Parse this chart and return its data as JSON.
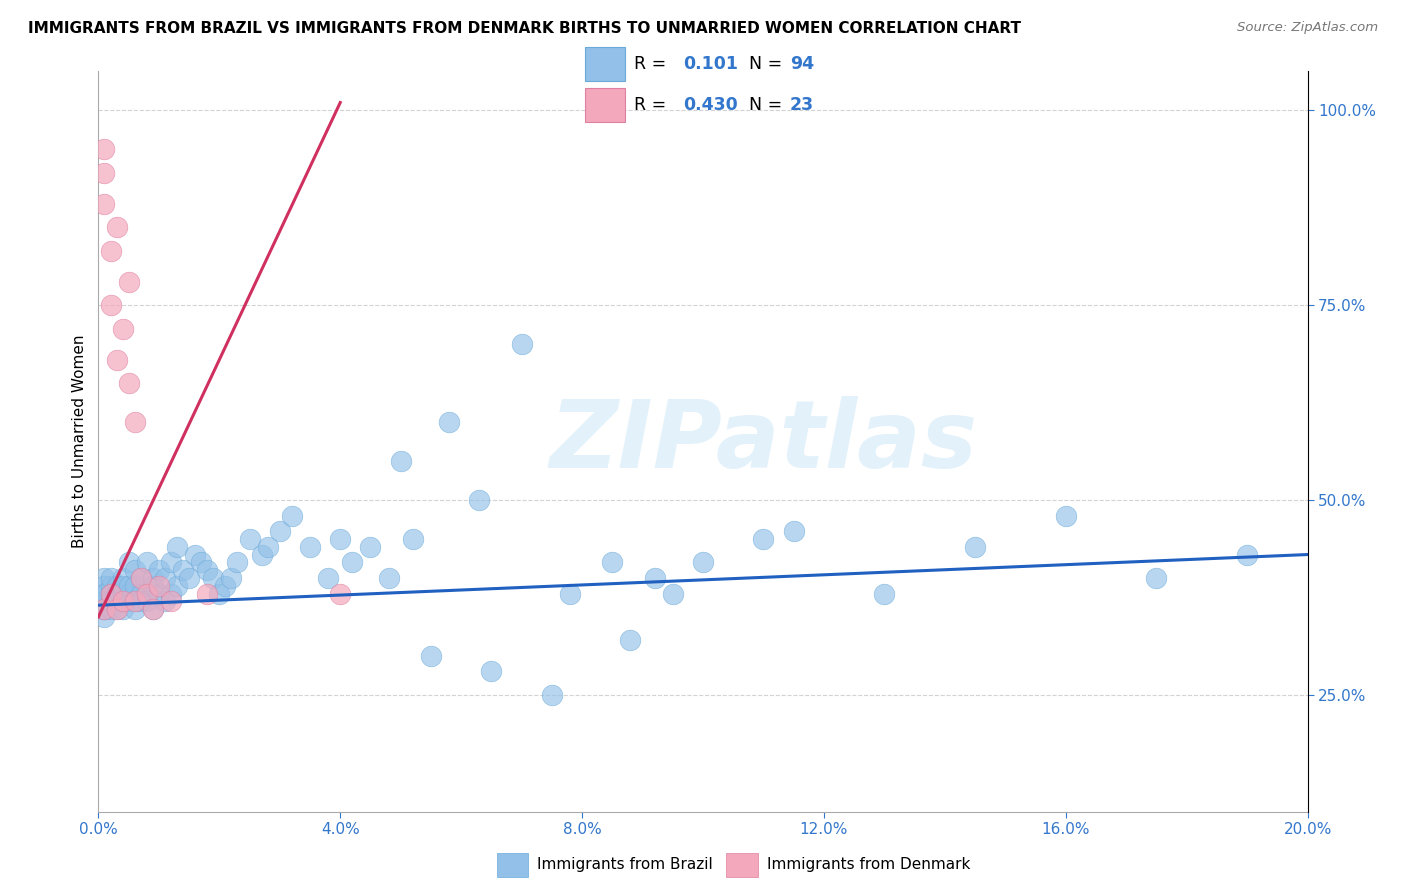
{
  "title": "IMMIGRANTS FROM BRAZIL VS IMMIGRANTS FROM DENMARK BIRTHS TO UNMARRIED WOMEN CORRELATION CHART",
  "source": "Source: ZipAtlas.com",
  "ylabel": "Births to Unmarried Women",
  "xmin": 0.0,
  "xmax": 0.2,
  "ymin": 0.1,
  "ymax": 1.05,
  "brazil_color": "#92c0e8",
  "denmark_color": "#f4a8bc",
  "trend_brazil_color": "#2060c0",
  "trend_denmark_color": "#d03060",
  "R_brazil": 0.101,
  "N_brazil": 94,
  "R_denmark": 0.43,
  "N_denmark": 23,
  "legend_label_brazil": "Immigrants from Brazil",
  "legend_label_denmark": "Immigrants from Denmark",
  "watermark": "ZIPatlas",
  "ytick_vals": [
    0.25,
    0.5,
    0.75,
    1.0
  ],
  "xtick_vals": [
    0.0,
    0.04,
    0.08,
    0.12,
    0.16,
    0.2
  ],
  "brazil_x": [
    0.001,
    0.001,
    0.001,
    0.001,
    0.001,
    0.001,
    0.001,
    0.001,
    0.001,
    0.002,
    0.002,
    0.002,
    0.002,
    0.002,
    0.002,
    0.002,
    0.003,
    0.003,
    0.003,
    0.003,
    0.003,
    0.003,
    0.004,
    0.004,
    0.004,
    0.004,
    0.004,
    0.005,
    0.005,
    0.005,
    0.005,
    0.006,
    0.006,
    0.006,
    0.006,
    0.007,
    0.007,
    0.007,
    0.008,
    0.008,
    0.008,
    0.009,
    0.009,
    0.009,
    0.01,
    0.01,
    0.011,
    0.011,
    0.012,
    0.012,
    0.013,
    0.013,
    0.014,
    0.015,
    0.016,
    0.017,
    0.018,
    0.019,
    0.02,
    0.021,
    0.022,
    0.023,
    0.025,
    0.027,
    0.028,
    0.03,
    0.032,
    0.035,
    0.038,
    0.04,
    0.042,
    0.045,
    0.048,
    0.05,
    0.052,
    0.058,
    0.063,
    0.07,
    0.078,
    0.085,
    0.092,
    0.1,
    0.115,
    0.13,
    0.145,
    0.16,
    0.175,
    0.19,
    0.11,
    0.095,
    0.055,
    0.065,
    0.075,
    0.088
  ],
  "brazil_y": [
    0.37,
    0.38,
    0.36,
    0.4,
    0.35,
    0.39,
    0.36,
    0.37,
    0.38,
    0.38,
    0.37,
    0.39,
    0.36,
    0.4,
    0.38,
    0.37,
    0.38,
    0.36,
    0.37,
    0.39,
    0.38,
    0.37,
    0.38,
    0.4,
    0.36,
    0.39,
    0.37,
    0.42,
    0.38,
    0.37,
    0.39,
    0.41,
    0.37,
    0.39,
    0.36,
    0.4,
    0.38,
    0.37,
    0.42,
    0.38,
    0.37,
    0.4,
    0.39,
    0.36,
    0.41,
    0.38,
    0.4,
    0.37,
    0.42,
    0.38,
    0.44,
    0.39,
    0.41,
    0.4,
    0.43,
    0.42,
    0.41,
    0.4,
    0.38,
    0.39,
    0.4,
    0.42,
    0.45,
    0.43,
    0.44,
    0.46,
    0.48,
    0.44,
    0.4,
    0.45,
    0.42,
    0.44,
    0.4,
    0.55,
    0.45,
    0.6,
    0.5,
    0.7,
    0.38,
    0.42,
    0.4,
    0.42,
    0.46,
    0.38,
    0.44,
    0.48,
    0.4,
    0.43,
    0.45,
    0.38,
    0.3,
    0.28,
    0.25,
    0.32
  ],
  "denmark_x": [
    0.001,
    0.001,
    0.001,
    0.001,
    0.002,
    0.002,
    0.002,
    0.003,
    0.003,
    0.003,
    0.004,
    0.004,
    0.005,
    0.005,
    0.006,
    0.006,
    0.007,
    0.008,
    0.009,
    0.01,
    0.012,
    0.018,
    0.04
  ],
  "denmark_y": [
    0.95,
    0.92,
    0.88,
    0.36,
    0.82,
    0.75,
    0.38,
    0.85,
    0.68,
    0.36,
    0.72,
    0.37,
    0.78,
    0.65,
    0.6,
    0.37,
    0.4,
    0.38,
    0.36,
    0.39,
    0.37,
    0.38,
    0.38
  ],
  "brazil_trend_x0": 0.0,
  "brazil_trend_y0": 0.365,
  "brazil_trend_x1": 0.2,
  "brazil_trend_y1": 0.43,
  "denmark_trend_x0": 0.0,
  "denmark_trend_y0": 0.35,
  "denmark_trend_x1": 0.04,
  "denmark_trend_y1": 1.01
}
